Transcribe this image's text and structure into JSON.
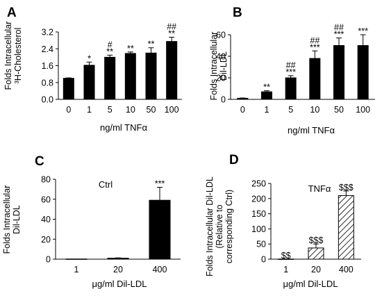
{
  "chart_data": [
    {
      "panel": "A",
      "type": "bar",
      "categories": [
        "0",
        "1",
        "5",
        "10",
        "50",
        "100"
      ],
      "values": [
        1.0,
        1.62,
        2.0,
        2.18,
        2.2,
        2.75
      ],
      "errors": [
        0.02,
        0.15,
        0.1,
        0.07,
        0.25,
        0.2
      ],
      "significance": [
        [
          "",
          ""
        ],
        [
          "*",
          ""
        ],
        [
          "**",
          "#"
        ],
        [
          "**",
          ""
        ],
        [
          "**",
          ""
        ],
        [
          "**",
          "##"
        ]
      ],
      "ylabel_lines": [
        "Folds Intracellular",
        "³H-Cholesterol"
      ],
      "xlabel": "ng/ml TNFα",
      "yticks": [
        "0.0",
        "0.8",
        "1.6",
        "2.4",
        "3.2"
      ],
      "ylim": [
        0,
        3.2
      ],
      "fill": "#000000"
    },
    {
      "panel": "B",
      "type": "bar",
      "categories": [
        "0",
        "1",
        "5",
        "10",
        "50",
        "100"
      ],
      "values": [
        1,
        7,
        20,
        38,
        50,
        50
      ],
      "errors": [
        0.3,
        1,
        2,
        7,
        7,
        10
      ],
      "significance": [
        [
          "",
          ""
        ],
        [
          "**",
          ""
        ],
        [
          "***",
          "##"
        ],
        [
          "***",
          "##"
        ],
        [
          "***",
          "##"
        ],
        [
          "***",
          ""
        ]
      ],
      "ylabel_lines": [
        "Folds Intracellular",
        "Dil-LDL"
      ],
      "xlabel": "ng/ml TNFα",
      "yticks": [
        "0",
        "20",
        "40",
        "60"
      ],
      "ylim": [
        0,
        60
      ],
      "fill": "#000000"
    },
    {
      "panel": "C",
      "type": "bar",
      "categories": [
        "1",
        "20",
        "400"
      ],
      "values": [
        0.2,
        1,
        59
      ],
      "errors": [
        0,
        0.3,
        13
      ],
      "significance": [
        [
          "",
          ""
        ],
        [
          "",
          ""
        ],
        [
          "***",
          ""
        ]
      ],
      "ylabel_lines": [
        "Folds Intracellular",
        "Dil-LDL"
      ],
      "xlabel": "μg/ml Dil-LDL",
      "yticks": [
        "0",
        "20",
        "40",
        "60",
        "80"
      ],
      "ylim": [
        0,
        80
      ],
      "annotation": "Ctrl",
      "fill": "#000000"
    },
    {
      "panel": "D",
      "type": "bar",
      "categories": [
        "1",
        "20",
        "400"
      ],
      "values": [
        0.5,
        37,
        210
      ],
      "errors": [
        0,
        13,
        15
      ],
      "significance": [
        [
          "$$",
          ""
        ],
        [
          "$$$",
          ""
        ],
        [
          "$$$",
          ""
        ]
      ],
      "ylabel_lines": [
        "Folds Intracellular Dil-LDL",
        "(Relative to",
        "corresponding Ctrl)"
      ],
      "xlabel": "μg/ml Dil-LDL",
      "yticks": [
        "0",
        "50",
        "100",
        "150",
        "200",
        "250"
      ],
      "ylim": [
        0,
        250
      ],
      "annotation": "TNFα",
      "fill": "hatched"
    }
  ]
}
